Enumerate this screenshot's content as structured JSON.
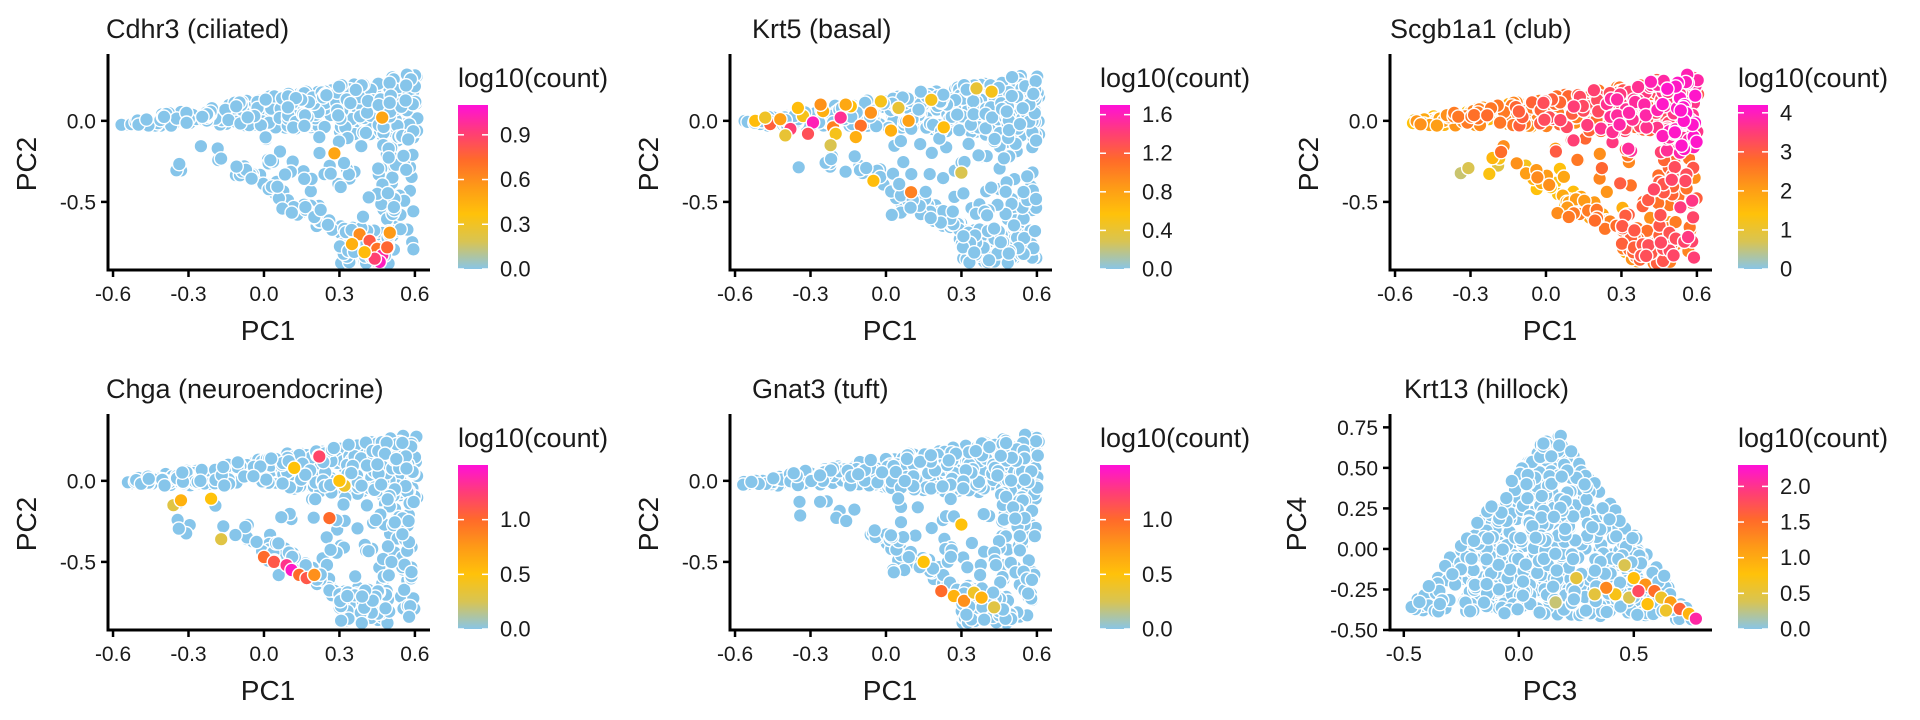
{
  "colors": {
    "point_zero": "#86c5ea",
    "gradient": [
      "#89c5e6",
      "#d8c453",
      "#ffc20a",
      "#fe9a17",
      "#ff6a2a",
      "#ff3d77",
      "#ff10d8"
    ],
    "point_stroke": "#ffffff"
  },
  "chart_data": [
    {
      "type": "scatter",
      "title": "Cdhr3 (ciliated)",
      "xlabel": "PC1",
      "ylabel": "PC2",
      "xlim": [
        -0.62,
        0.66
      ],
      "ylim": [
        -0.92,
        0.4
      ],
      "xticks": [
        -0.6,
        -0.3,
        0.0,
        0.3,
        0.6
      ],
      "xtick_labels": [
        "-0.6",
        "-0.3",
        "0.0",
        "0.3",
        "0.6"
      ],
      "yticks": [
        0.0,
        -0.5
      ],
      "ytick_labels": [
        "0.0",
        "-0.5"
      ],
      "legend_title": "log10(count)",
      "color_range": [
        0,
        1.1
      ],
      "color_ticks": [
        0.0,
        0.3,
        0.6,
        0.9
      ],
      "color_tick_labels": [
        "0.0",
        "0.3",
        "0.6",
        "0.9"
      ],
      "shape": "pc12",
      "seed": 11,
      "highlights": [
        {
          "x": 0.47,
          "y": 0.02,
          "v": 0.5
        },
        {
          "x": 0.28,
          "y": -0.2,
          "v": 0.5
        },
        {
          "x": 0.38,
          "y": -0.7,
          "v": 0.6
        },
        {
          "x": 0.42,
          "y": -0.74,
          "v": 0.8
        },
        {
          "x": 0.45,
          "y": -0.79,
          "v": 0.7
        },
        {
          "x": 0.47,
          "y": -0.83,
          "v": 1.0
        },
        {
          "x": 0.46,
          "y": -0.87,
          "v": 1.05
        },
        {
          "x": 0.5,
          "y": -0.69,
          "v": 0.55
        },
        {
          "x": 0.35,
          "y": -0.76,
          "v": 0.45
        },
        {
          "x": 0.44,
          "y": -0.85,
          "v": 0.9
        },
        {
          "x": 0.49,
          "y": -0.78,
          "v": 0.75
        },
        {
          "x": 0.4,
          "y": -0.81,
          "v": 0.4
        }
      ]
    },
    {
      "type": "scatter",
      "title": "Krt5 (basal)",
      "xlabel": "PC1",
      "ylabel": "PC2",
      "xlim": [
        -0.62,
        0.66
      ],
      "ylim": [
        -0.92,
        0.4
      ],
      "xticks": [
        -0.6,
        -0.3,
        0.0,
        0.3,
        0.6
      ],
      "xtick_labels": [
        "-0.6",
        "-0.3",
        "0.0",
        "0.3",
        "0.6"
      ],
      "yticks": [
        0.0,
        -0.5
      ],
      "ytick_labels": [
        "0.0",
        "-0.5"
      ],
      "legend_title": "log10(count)",
      "color_range": [
        0,
        1.7
      ],
      "color_ticks": [
        0.0,
        0.4,
        0.8,
        1.2,
        1.6
      ],
      "color_tick_labels": [
        "0.0",
        "0.4",
        "0.8",
        "1.2",
        "1.6"
      ],
      "shape": "pc12",
      "seed": 23,
      "highlights": [
        {
          "x": -0.52,
          "y": 0.0,
          "v": 0.6
        },
        {
          "x": -0.46,
          "y": -0.02,
          "v": 1.2
        },
        {
          "x": -0.42,
          "y": 0.01,
          "v": 0.8
        },
        {
          "x": -0.38,
          "y": -0.05,
          "v": 1.4
        },
        {
          "x": -0.33,
          "y": 0.03,
          "v": 0.5
        },
        {
          "x": -0.29,
          "y": -0.01,
          "v": 1.6
        },
        {
          "x": -0.25,
          "y": 0.06,
          "v": 0.7
        },
        {
          "x": -0.21,
          "y": -0.04,
          "v": 1.0
        },
        {
          "x": -0.18,
          "y": 0.02,
          "v": 1.5
        },
        {
          "x": -0.14,
          "y": 0.09,
          "v": 0.6
        },
        {
          "x": -0.1,
          "y": -0.03,
          "v": 1.1
        },
        {
          "x": -0.06,
          "y": 0.05,
          "v": 0.9
        },
        {
          "x": -0.02,
          "y": 0.12,
          "v": 0.5
        },
        {
          "x": 0.02,
          "y": -0.06,
          "v": 0.7
        },
        {
          "x": 0.05,
          "y": 0.08,
          "v": 0.4
        },
        {
          "x": 0.09,
          "y": 0.0,
          "v": 0.8
        },
        {
          "x": -0.35,
          "y": 0.08,
          "v": 0.6
        },
        {
          "x": -0.26,
          "y": 0.1,
          "v": 0.9
        },
        {
          "x": -0.4,
          "y": -0.09,
          "v": 0.4
        },
        {
          "x": -0.2,
          "y": -0.08,
          "v": 0.5
        },
        {
          "x": -0.12,
          "y": -0.1,
          "v": 0.7
        },
        {
          "x": -0.22,
          "y": -0.15,
          "v": 0.3
        },
        {
          "x": 0.1,
          "y": -0.44,
          "v": 1.0
        },
        {
          "x": -0.05,
          "y": -0.37,
          "v": 0.6
        },
        {
          "x": 0.18,
          "y": 0.13,
          "v": 0.5
        },
        {
          "x": 0.23,
          "y": -0.04,
          "v": 0.6
        },
        {
          "x": 0.36,
          "y": 0.2,
          "v": 0.4
        },
        {
          "x": 0.42,
          "y": 0.18,
          "v": 0.5
        },
        {
          "x": 0.3,
          "y": -0.32,
          "v": 0.3
        },
        {
          "x": -0.48,
          "y": 0.02,
          "v": 0.45
        },
        {
          "x": -0.31,
          "y": -0.08,
          "v": 1.3
        },
        {
          "x": -0.16,
          "y": 0.1,
          "v": 0.75
        }
      ]
    },
    {
      "type": "scatter",
      "title": "Scgb1a1 (club)",
      "xlabel": "PC1",
      "ylabel": "PC2",
      "xlim": [
        -0.62,
        0.66
      ],
      "ylim": [
        -0.92,
        0.4
      ],
      "xticks": [
        -0.6,
        -0.3,
        0.0,
        0.3,
        0.6
      ],
      "xtick_labels": [
        "-0.6",
        "-0.3",
        "0.0",
        "0.3",
        "0.6"
      ],
      "yticks": [
        0.0,
        -0.5
      ],
      "ytick_labels": [
        "0.0",
        "-0.5"
      ],
      "legend_title": "log10(count)",
      "color_range": [
        0,
        4.2
      ],
      "color_ticks": [
        0,
        1,
        2,
        3,
        4
      ],
      "color_tick_labels": [
        "0",
        "1",
        "2",
        "3",
        "4"
      ],
      "shape": "pc12",
      "seed": 37,
      "club": true,
      "highlights": []
    },
    {
      "type": "scatter",
      "title": "Chga (neuroendocrine)",
      "xlabel": "PC1",
      "ylabel": "PC2",
      "xlim": [
        -0.62,
        0.66
      ],
      "ylim": [
        -0.92,
        0.4
      ],
      "xticks": [
        -0.6,
        -0.3,
        0.0,
        0.3,
        0.6
      ],
      "xtick_labels": [
        "-0.6",
        "-0.3",
        "0.0",
        "0.3",
        "0.6"
      ],
      "yticks": [
        0.0,
        -0.5
      ],
      "ytick_labels": [
        "0.0",
        "-0.5"
      ],
      "legend_title": "log10(count)",
      "color_range": [
        0,
        1.5
      ],
      "color_ticks": [
        0.0,
        0.5,
        1.0
      ],
      "color_tick_labels": [
        "0.0",
        "0.5",
        "1.0"
      ],
      "shape": "pc12",
      "seed": 53,
      "highlights": [
        {
          "x": -0.36,
          "y": -0.15,
          "v": 0.3
        },
        {
          "x": -0.33,
          "y": -0.12,
          "v": 0.6
        },
        {
          "x": -0.21,
          "y": -0.11,
          "v": 0.5
        },
        {
          "x": -0.17,
          "y": -0.36,
          "v": 0.3
        },
        {
          "x": 0.0,
          "y": -0.47,
          "v": 1.0
        },
        {
          "x": 0.04,
          "y": -0.5,
          "v": 1.1
        },
        {
          "x": 0.09,
          "y": -0.52,
          "v": 1.3
        },
        {
          "x": 0.11,
          "y": -0.55,
          "v": 1.45
        },
        {
          "x": 0.14,
          "y": -0.58,
          "v": 1.0
        },
        {
          "x": 0.17,
          "y": -0.6,
          "v": 1.1
        },
        {
          "x": 0.2,
          "y": -0.58,
          "v": 0.8
        },
        {
          "x": 0.26,
          "y": -0.23,
          "v": 1.0
        },
        {
          "x": 0.22,
          "y": 0.15,
          "v": 1.2
        },
        {
          "x": 0.12,
          "y": 0.08,
          "v": 0.5
        },
        {
          "x": 0.32,
          "y": -0.03,
          "v": 0.4
        },
        {
          "x": 0.3,
          "y": 0.0,
          "v": 0.5
        }
      ]
    },
    {
      "type": "scatter",
      "title": "Gnat3 (tuft)",
      "xlabel": "PC1",
      "ylabel": "PC2",
      "xlim": [
        -0.62,
        0.66
      ],
      "ylim": [
        -0.92,
        0.4
      ],
      "xticks": [
        -0.6,
        -0.3,
        0.0,
        0.3,
        0.6
      ],
      "xtick_labels": [
        "-0.6",
        "-0.3",
        "0.0",
        "0.3",
        "0.6"
      ],
      "yticks": [
        0.0,
        -0.5
      ],
      "ytick_labels": [
        "0.0",
        "-0.5"
      ],
      "legend_title": "log10(count)",
      "color_range": [
        0,
        1.5
      ],
      "color_ticks": [
        0.0,
        0.5,
        1.0
      ],
      "color_tick_labels": [
        "0.0",
        "0.5",
        "1.0"
      ],
      "shape": "pc12",
      "seed": 71,
      "highlights": [
        {
          "x": 0.22,
          "y": -0.68,
          "v": 1.0
        },
        {
          "x": 0.27,
          "y": -0.71,
          "v": 0.6
        },
        {
          "x": 0.31,
          "y": -0.74,
          "v": 0.8
        },
        {
          "x": 0.35,
          "y": -0.69,
          "v": 0.4
        },
        {
          "x": 0.15,
          "y": -0.5,
          "v": 0.5
        },
        {
          "x": 0.3,
          "y": -0.27,
          "v": 0.5
        },
        {
          "x": 0.38,
          "y": -0.72,
          "v": 0.6
        },
        {
          "x": 0.43,
          "y": -0.78,
          "v": 0.3
        }
      ]
    },
    {
      "type": "scatter",
      "title": "Krt13 (hillock)",
      "xlabel": "PC3",
      "ylabel": "PC4",
      "xlim": [
        -0.56,
        0.84
      ],
      "ylim": [
        -0.5,
        0.82
      ],
      "xticks": [
        -0.5,
        0.0,
        0.5
      ],
      "xtick_labels": [
        "-0.5",
        "0.0",
        "0.5"
      ],
      "yticks": [
        0.75,
        0.5,
        0.25,
        0.0,
        -0.25,
        -0.5
      ],
      "ytick_labels": [
        "0.75",
        "0.50",
        "0.25",
        "0.00",
        "-0.25",
        "-0.50"
      ],
      "legend_title": "log10(count)",
      "color_range": [
        0,
        2.3
      ],
      "color_ticks": [
        0.0,
        0.5,
        1.0,
        1.5,
        2.0
      ],
      "color_tick_labels": [
        "0.0",
        "0.5",
        "1.0",
        "1.5",
        "2.0"
      ],
      "shape": "pc34",
      "seed": 97,
      "highlights": [
        {
          "x": 0.46,
          "y": -0.1,
          "v": 0.4
        },
        {
          "x": 0.5,
          "y": -0.18,
          "v": 0.8
        },
        {
          "x": 0.55,
          "y": -0.22,
          "v": 1.2
        },
        {
          "x": 0.59,
          "y": -0.26,
          "v": 1.5
        },
        {
          "x": 0.62,
          "y": -0.3,
          "v": 0.6
        },
        {
          "x": 0.66,
          "y": -0.33,
          "v": 1.1
        },
        {
          "x": 0.7,
          "y": -0.37,
          "v": 1.6
        },
        {
          "x": 0.74,
          "y": -0.4,
          "v": 0.9
        },
        {
          "x": 0.77,
          "y": -0.43,
          "v": 2.1
        },
        {
          "x": 0.42,
          "y": -0.28,
          "v": 0.7
        },
        {
          "x": 0.38,
          "y": -0.24,
          "v": 1.3
        },
        {
          "x": 0.33,
          "y": -0.28,
          "v": 0.5
        },
        {
          "x": 0.48,
          "y": -0.3,
          "v": 0.4
        },
        {
          "x": 0.56,
          "y": -0.34,
          "v": 0.8
        },
        {
          "x": 0.64,
          "y": -0.38,
          "v": 0.6
        },
        {
          "x": 0.25,
          "y": -0.18,
          "v": 0.5
        },
        {
          "x": 0.16,
          "y": -0.33,
          "v": 0.3
        },
        {
          "x": 0.52,
          "y": -0.26,
          "v": 1.8
        }
      ]
    }
  ]
}
